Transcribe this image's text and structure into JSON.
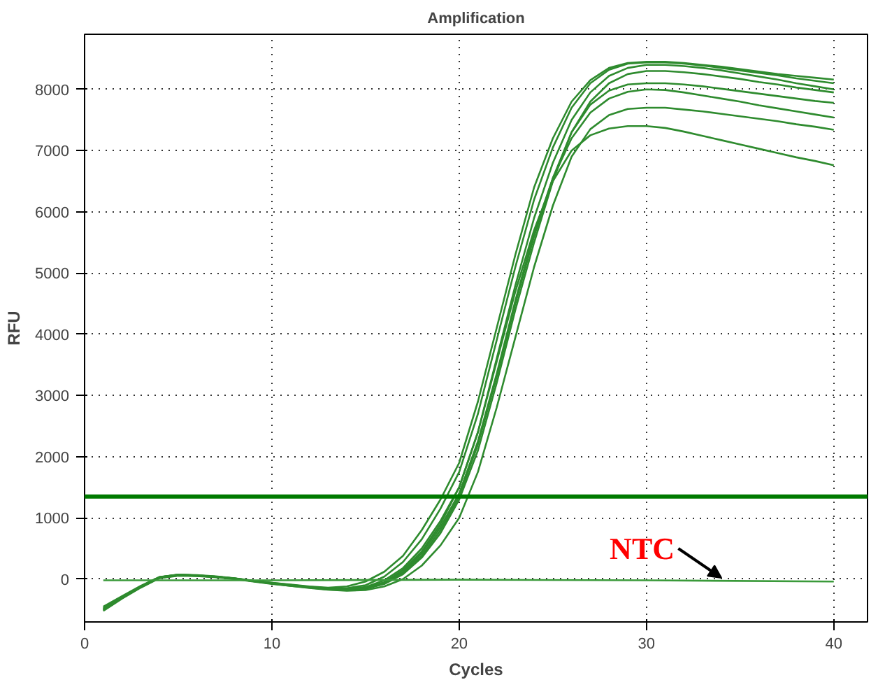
{
  "chart_data": {
    "type": "line",
    "title": "Amplification",
    "xlabel": "Cycles",
    "ylabel": "RFU",
    "x": [
      1,
      2,
      3,
      4,
      5,
      6,
      7,
      8,
      9,
      10,
      11,
      12,
      13,
      14,
      15,
      16,
      17,
      18,
      19,
      20,
      21,
      22,
      23,
      24,
      25,
      26,
      27,
      28,
      29,
      30,
      31,
      32,
      33,
      34,
      35,
      36,
      37,
      38,
      39,
      40
    ],
    "xlim": [
      0,
      41.8
    ],
    "ylim": [
      -700,
      8900
    ],
    "xticks": [
      0,
      10,
      20,
      30,
      40
    ],
    "yticks": [
      0,
      1000,
      2000,
      3000,
      4000,
      5000,
      6000,
      7000,
      8000
    ],
    "grid": true,
    "line_style": "solid",
    "marker": "none",
    "series": [
      {
        "color": "#2e8b2e",
        "values": [
          -480,
          -300,
          -120,
          30,
          70,
          60,
          40,
          10,
          -30,
          -60,
          -90,
          -120,
          -140,
          -120,
          -40,
          120,
          380,
          800,
          1300,
          1900,
          2900,
          4100,
          5300,
          6400,
          7200,
          7800,
          8150,
          8350,
          8430,
          8450,
          8450,
          8430,
          8400,
          8370,
          8330,
          8290,
          8250,
          8220,
          8190,
          8160
        ]
      },
      {
        "color": "#2e8b2e",
        "values": [
          -500,
          -310,
          -130,
          20,
          60,
          55,
          35,
          5,
          -35,
          -70,
          -100,
          -130,
          -150,
          -150,
          -100,
          40,
          280,
          650,
          1150,
          1750,
          2700,
          3900,
          5100,
          6200,
          7050,
          7700,
          8100,
          8320,
          8420,
          8440,
          8440,
          8420,
          8390,
          8350,
          8310,
          8270,
          8230,
          8180,
          8140,
          8100
        ]
      },
      {
        "color": "#2e8b2e",
        "values": [
          -450,
          -280,
          -110,
          35,
          75,
          65,
          45,
          15,
          -25,
          -60,
          -95,
          -125,
          -150,
          -160,
          -130,
          -20,
          180,
          500,
          950,
          1500,
          2400,
          3600,
          4800,
          5900,
          6800,
          7500,
          7950,
          8220,
          8350,
          8400,
          8400,
          8380,
          8350,
          8310,
          8260,
          8210,
          8160,
          8100,
          8050,
          8000
        ]
      },
      {
        "color": "#2e8b2e",
        "values": [
          -520,
          -320,
          -140,
          15,
          55,
          50,
          30,
          0,
          -40,
          -80,
          -110,
          -140,
          -170,
          -180,
          -160,
          -80,
          80,
          350,
          750,
          1300,
          2100,
          3200,
          4400,
          5500,
          6500,
          7300,
          7800,
          8100,
          8250,
          8300,
          8300,
          8280,
          8250,
          8210,
          8170,
          8120,
          8080,
          8030,
          7990,
          7950
        ]
      },
      {
        "color": "#2e8b2e",
        "values": [
          -500,
          -300,
          -130,
          25,
          65,
          55,
          35,
          5,
          -35,
          -70,
          -105,
          -135,
          -160,
          -175,
          -150,
          -70,
          100,
          380,
          800,
          1350,
          2200,
          3300,
          4500,
          5600,
          6550,
          7300,
          7750,
          7980,
          8080,
          8100,
          8100,
          8080,
          8050,
          8010,
          7970,
          7930,
          7890,
          7850,
          7810,
          7780
        ]
      },
      {
        "color": "#2e8b2e",
        "values": [
          -470,
          -290,
          -120,
          30,
          70,
          60,
          40,
          10,
          -30,
          -65,
          -100,
          -130,
          -155,
          -165,
          -140,
          -60,
          120,
          420,
          850,
          1400,
          2250,
          3350,
          4550,
          5650,
          6550,
          7200,
          7620,
          7850,
          7960,
          8000,
          7990,
          7950,
          7900,
          7850,
          7800,
          7740,
          7690,
          7640,
          7590,
          7540
        ]
      },
      {
        "color": "#2e8b2e",
        "values": [
          -510,
          -310,
          -130,
          20,
          60,
          55,
          35,
          5,
          -35,
          -75,
          -110,
          -145,
          -175,
          -190,
          -180,
          -120,
          0,
          220,
          550,
          1000,
          1750,
          2800,
          3950,
          5100,
          6100,
          6900,
          7350,
          7580,
          7680,
          7700,
          7700,
          7670,
          7640,
          7600,
          7560,
          7520,
          7480,
          7430,
          7390,
          7340
        ]
      },
      {
        "color": "#2e8b2e",
        "values": [
          -490,
          -300,
          -120,
          30,
          70,
          60,
          40,
          10,
          -30,
          -65,
          -100,
          -130,
          -160,
          -170,
          -140,
          -50,
          150,
          450,
          900,
          1500,
          2400,
          3550,
          4700,
          5700,
          6500,
          7000,
          7250,
          7360,
          7400,
          7400,
          7370,
          7310,
          7240,
          7170,
          7100,
          7030,
          6960,
          6890,
          6830,
          6760
        ]
      },
      {
        "color": "#3a9a3a",
        "x": [
          1,
          10,
          20,
          30,
          40
        ],
        "values": [
          -20,
          -20,
          -10,
          -20,
          -40
        ]
      }
    ],
    "ref_lines": [
      {
        "axis": "y",
        "value": 1350,
        "color": "#007a00"
      }
    ],
    "annotations": [
      {
        "text": "NTC",
        "x": 34,
        "y": 0
      }
    ]
  }
}
